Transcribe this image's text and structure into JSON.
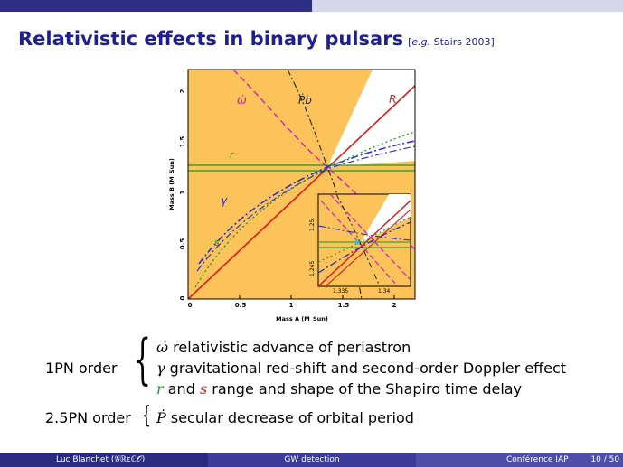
{
  "colors": {
    "bar_dark": "#2e2e86",
    "bar_light": "#d6d6ea",
    "title": "#1f1f8f",
    "region": "#fbc35a",
    "footer_dark": "#2a2a80",
    "footer_mid": "#3b3b99",
    "footer_light": "#4e4ea8"
  },
  "slide": {
    "title": "Relativistic effects in binary pulsars",
    "ref_eg": "e.g.",
    "ref_src": "Stairs 2003"
  },
  "chart_data": {
    "type": "mass-mass diagram",
    "xlabel": "Mass A (M_Sun)",
    "ylabel": "Mass B (M_Sun)",
    "xlim": [
      0,
      2.2
    ],
    "ylim": [
      0,
      2.2
    ],
    "xticks": [
      "0",
      "0.5",
      "1",
      "1.5",
      "2"
    ],
    "yticks": [
      "0",
      "0.5",
      "1",
      "1.5",
      "2"
    ],
    "curve_labels": {
      "omega_dot": "ω̇",
      "pb_dot": "Ṗb",
      "r": "r",
      "R": "R",
      "gamma": "γ",
      "s": "s"
    },
    "intersection": {
      "mass_a": 1.34,
      "mass_b": 1.25
    },
    "inset": {
      "xticks": [
        "1.335",
        "1.34"
      ],
      "yticks": [
        "1.245",
        "1.25"
      ]
    }
  },
  "list": {
    "pn1": {
      "label": "1PN order",
      "items": [
        {
          "sym": "ω̇",
          "text": "relativistic advance of periastron"
        },
        {
          "sym": "γ",
          "text": "gravitational red-shift and second-order Doppler effect"
        },
        {
          "sym1": "r",
          "mid": "and",
          "sym2": "s",
          "text": "range and shape of the Shapiro time delay"
        }
      ]
    },
    "pn25": {
      "label": "2.5PN order",
      "items": [
        {
          "sym": "Ṗ",
          "text": "secular decrease of orbital period"
        }
      ]
    }
  },
  "footer": {
    "author": "Luc Blanchet (𝒢ℝεℂ𝒪)",
    "talk": "GW detection",
    "venue": "Conférence IAP",
    "page": "10 / 50"
  }
}
